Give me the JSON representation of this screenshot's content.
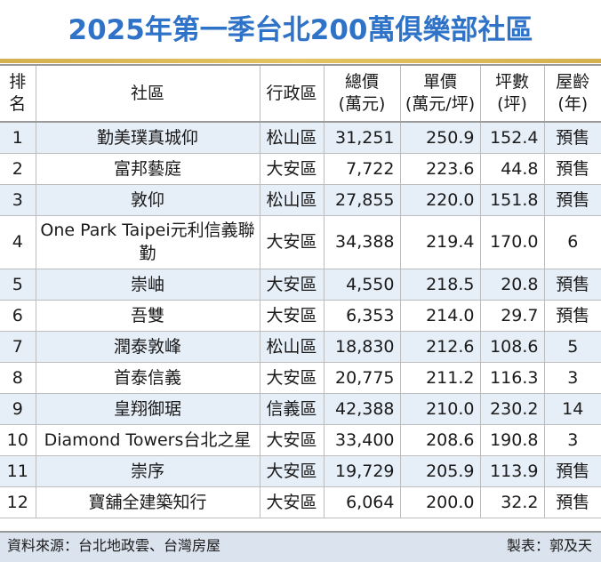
{
  "title": "2025年第一季台北200萬俱樂部社區",
  "colors": {
    "title": "#2f73c9",
    "accent_bar": "#d4b04e",
    "row_stripe": "#e6eef8"
  },
  "headers": {
    "rank": "排名",
    "community": "社區",
    "district": "行政區",
    "total_price": [
      "總價",
      "(萬元)"
    ],
    "unit_price": [
      "單價",
      "(萬元/坪)"
    ],
    "area": [
      "坪數",
      "(坪)"
    ],
    "age": [
      "屋齡",
      "(年)"
    ]
  },
  "rows": [
    {
      "rank": "1",
      "community": "勤美璞真城仰",
      "district": "松山區",
      "total": "31,251",
      "unit": "250.9",
      "area": "152.4",
      "age": "預售"
    },
    {
      "rank": "2",
      "community": "富邦藝庭",
      "district": "大安區",
      "total": "7,722",
      "unit": "223.6",
      "area": "44.8",
      "age": "預售"
    },
    {
      "rank": "3",
      "community": "敦仰",
      "district": "松山區",
      "total": "27,855",
      "unit": "220.0",
      "area": "151.8",
      "age": "預售"
    },
    {
      "rank": "4",
      "community": "One Park Taipei元利信義聯勤",
      "district": "大安區",
      "total": "34,388",
      "unit": "219.4",
      "area": "170.0",
      "age": "6"
    },
    {
      "rank": "5",
      "community": "崇岫",
      "district": "大安區",
      "total": "4,550",
      "unit": "218.5",
      "area": "20.8",
      "age": "預售"
    },
    {
      "rank": "6",
      "community": "吾雙",
      "district": "大安區",
      "total": "6,353",
      "unit": "214.0",
      "area": "29.7",
      "age": "預售"
    },
    {
      "rank": "7",
      "community": "潤泰敦峰",
      "district": "松山區",
      "total": "18,830",
      "unit": "212.6",
      "area": "108.6",
      "age": "5"
    },
    {
      "rank": "8",
      "community": "首泰信義",
      "district": "大安區",
      "total": "20,775",
      "unit": "211.2",
      "area": "116.3",
      "age": "3"
    },
    {
      "rank": "9",
      "community": "皇翔御琚",
      "district": "信義區",
      "total": "42,388",
      "unit": "210.0",
      "area": "230.2",
      "age": "14"
    },
    {
      "rank": "10",
      "community": "Diamond Towers台北之星",
      "district": "大安區",
      "total": "33,400",
      "unit": "208.6",
      "area": "190.8",
      "age": "3"
    },
    {
      "rank": "11",
      "community": "崇序",
      "district": "大安區",
      "total": "19,729",
      "unit": "205.9",
      "area": "113.9",
      "age": "預售"
    },
    {
      "rank": "12",
      "community": "寶舖全建築知行",
      "district": "大安區",
      "total": "6,064",
      "unit": "200.0",
      "area": "32.2",
      "age": "預售"
    }
  ],
  "footer": {
    "source": "資料來源：台北地政雲、台灣房屋",
    "maker": "製表：郭及天"
  }
}
